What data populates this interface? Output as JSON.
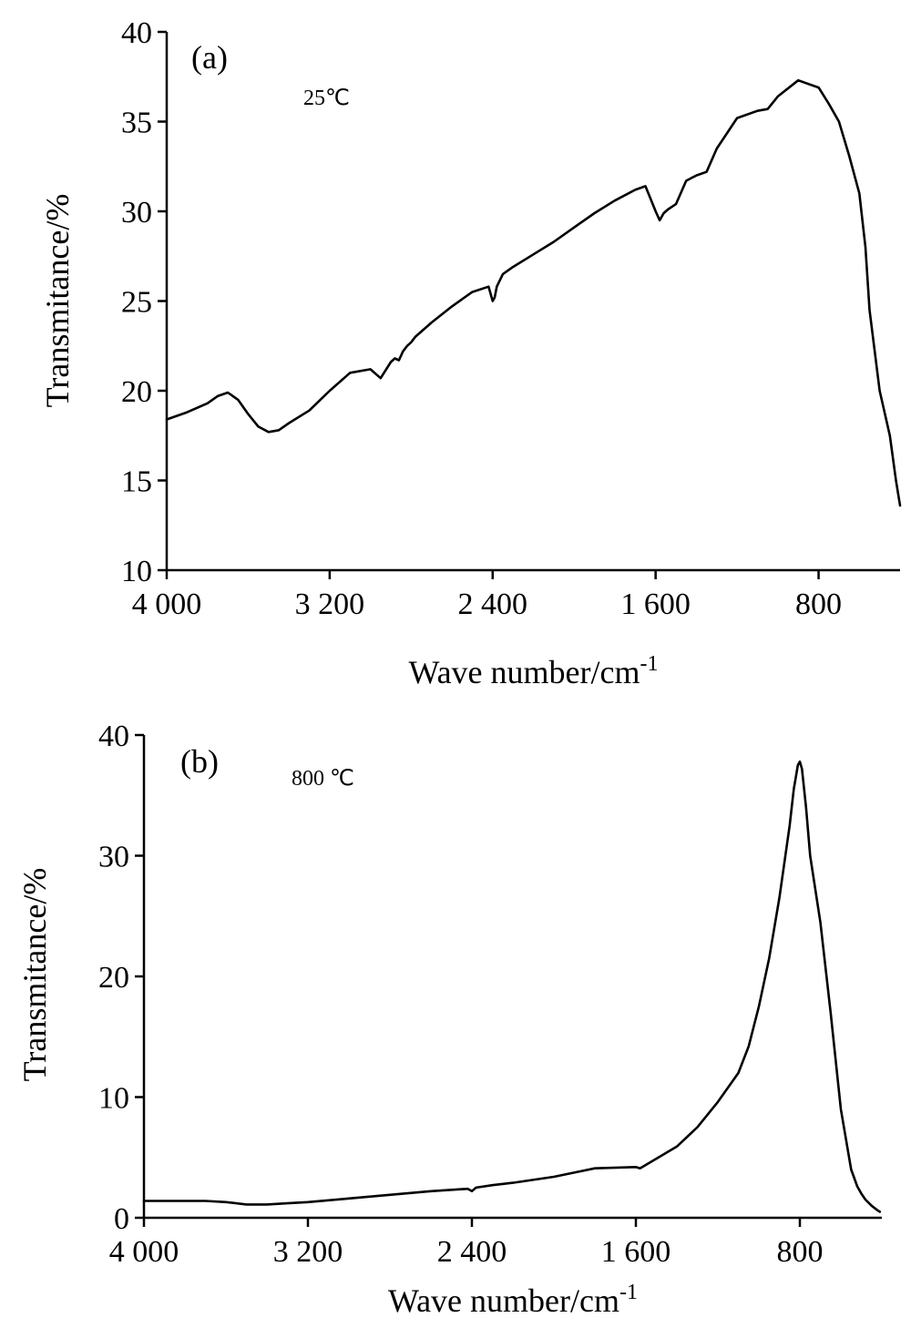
{
  "chart_data": [
    {
      "type": "line",
      "panel_label": "(a)",
      "annotation": "25℃",
      "xlabel_base": "Wave number/cm",
      "xlabel_sup": "-1",
      "ylabel": "Transmitance/%",
      "xlim": [
        4000,
        400
      ],
      "ylim": [
        10,
        40
      ],
      "x_ticks": [
        4000,
        3200,
        2400,
        1600,
        800
      ],
      "x_tick_labels": [
        "4 000",
        "3 200",
        "2 400",
        "1 600",
        "800"
      ],
      "y_ticks": [
        10,
        15,
        20,
        25,
        30,
        35,
        40
      ],
      "y_tick_labels": [
        "10",
        "15",
        "20",
        "25",
        "30",
        "35",
        "40"
      ],
      "series": [
        {
          "x": [
            4000,
            3900,
            3800,
            3750,
            3700,
            3650,
            3600,
            3550,
            3500,
            3450,
            3400,
            3300,
            3200,
            3100,
            3000,
            2950,
            2900,
            2880,
            2860,
            2840,
            2820,
            2800,
            2780,
            2700,
            2600,
            2500,
            2420,
            2400,
            2390,
            2380,
            2350,
            2300,
            2200,
            2100,
            2000,
            1900,
            1800,
            1700,
            1650,
            1600,
            1580,
            1560,
            1540,
            1500,
            1450,
            1400,
            1350,
            1300,
            1200,
            1100,
            1050,
            1000,
            900,
            800,
            750,
            700,
            650,
            600,
            570,
            550,
            500,
            450,
            420,
            400
          ],
          "y": [
            18.4,
            18.8,
            19.3,
            19.7,
            19.9,
            19.5,
            18.7,
            18.0,
            17.7,
            17.8,
            18.2,
            18.9,
            20.0,
            21.0,
            21.2,
            20.7,
            21.6,
            21.8,
            21.7,
            22.2,
            22.5,
            22.7,
            23.0,
            23.8,
            24.7,
            25.5,
            25.8,
            25.0,
            25.2,
            25.8,
            26.5,
            26.9,
            27.6,
            28.3,
            29.1,
            29.9,
            30.6,
            31.2,
            31.4,
            30.0,
            29.5,
            29.9,
            30.1,
            30.4,
            31.7,
            32.0,
            32.2,
            33.5,
            35.2,
            35.6,
            35.7,
            36.4,
            37.3,
            36.9,
            36.0,
            35.0,
            33.1,
            31.0,
            28.0,
            24.5,
            20.0,
            17.5,
            15.0,
            13.6
          ]
        }
      ]
    },
    {
      "type": "line",
      "panel_label": "(b)",
      "annotation": "800 ℃",
      "xlabel_base": "Wave number/cm",
      "xlabel_sup": "-1",
      "ylabel": "Transmitance/%",
      "xlim": [
        4000,
        400
      ],
      "ylim": [
        0,
        40
      ],
      "x_ticks": [
        4000,
        3200,
        2400,
        1600,
        800
      ],
      "x_tick_labels": [
        "4 000",
        "3 200",
        "2 400",
        "1 600",
        "800"
      ],
      "y_ticks": [
        0,
        10,
        20,
        30,
        40
      ],
      "y_tick_labels": [
        "0",
        "10",
        "20",
        "30",
        "40"
      ],
      "series": [
        {
          "x": [
            4000,
            3900,
            3800,
            3700,
            3600,
            3500,
            3400,
            3300,
            3200,
            3000,
            2800,
            2600,
            2420,
            2400,
            2380,
            2300,
            2200,
            2000,
            1800,
            1600,
            1580,
            1550,
            1500,
            1400,
            1300,
            1200,
            1100,
            1050,
            1000,
            950,
            900,
            850,
            830,
            810,
            800,
            790,
            770,
            750,
            700,
            650,
            600,
            550,
            520,
            500,
            480,
            450,
            420,
            410
          ],
          "y": [
            1.4,
            1.4,
            1.4,
            1.4,
            1.3,
            1.1,
            1.1,
            1.2,
            1.3,
            1.6,
            1.9,
            2.2,
            2.4,
            2.2,
            2.5,
            2.7,
            2.9,
            3.4,
            4.1,
            4.2,
            4.1,
            4.4,
            4.9,
            5.9,
            7.5,
            9.6,
            12.0,
            14.2,
            17.5,
            21.5,
            26.5,
            32.5,
            35.5,
            37.5,
            37.8,
            37.2,
            34.0,
            30.0,
            24.5,
            17.0,
            9.0,
            4.0,
            2.6,
            2.0,
            1.5,
            1.0,
            0.6,
            0.5
          ]
        }
      ]
    }
  ]
}
